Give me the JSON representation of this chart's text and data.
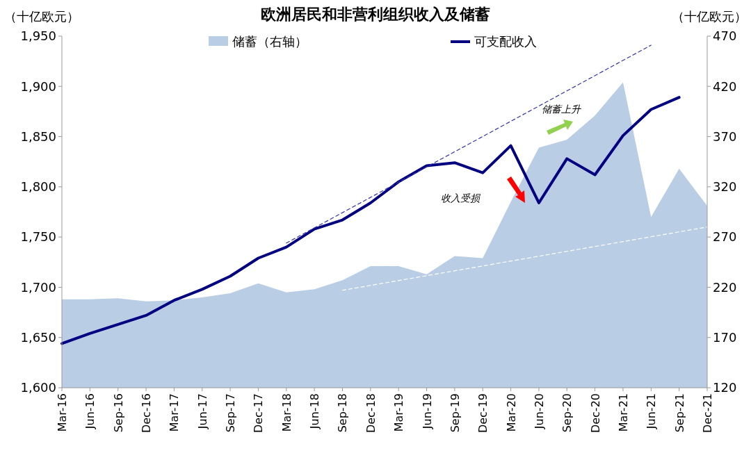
{
  "chart_data": {
    "type": "line",
    "title": "欧洲居民和非营利组织收入及储蓄",
    "ylabel": "（十亿欧元）",
    "y2label": "（十亿欧元）",
    "categories": [
      "Mar-16",
      "Jun-16",
      "Sep-16",
      "Dec-16",
      "Mar-17",
      "Jun-17",
      "Sep-17",
      "Dec-17",
      "Mar-18",
      "Jun-18",
      "Sep-18",
      "Dec-18",
      "Mar-19",
      "Jun-19",
      "Sep-19",
      "Dec-19",
      "Mar-20",
      "Jun-20",
      "Sep-20",
      "Dec-20",
      "Mar-21",
      "Jun-21",
      "Sep-21",
      "Dec-21"
    ],
    "series": [
      {
        "name": "储蓄（右轴）",
        "type": "area",
        "axis": "y2",
        "color": "#b9cde5",
        "values": [
          208,
          208,
          209,
          206,
          207,
          210,
          214,
          224,
          215,
          218,
          227,
          241,
          241,
          233,
          251,
          249,
          305,
          359,
          367,
          391,
          424,
          290,
          338,
          301
        ]
      },
      {
        "name": "可支配收入",
        "color": "#000080",
        "values": [
          1644,
          1654,
          1663,
          1672,
          1687,
          1698,
          1711,
          1729,
          1740,
          1758,
          1767,
          1784,
          1805,
          1821,
          1824,
          1814,
          1841,
          1784,
          1828,
          1812,
          1851,
          1877,
          1889,
          null
        ]
      },
      {
        "color": "#3333aa",
        "line_style": "dashed",
        "x": [
          "Mar-18",
          "Jun-21"
        ],
        "values": [
          1744,
          1941
        ]
      },
      {
        "axis": "y2",
        "color": "#ffffff",
        "line_style": "dashed",
        "x": [
          "Sep-18",
          "Dec-21"
        ],
        "values": [
          217,
          280
        ]
      }
    ],
    "ylim": [
      1600,
      1950
    ],
    "yticks": [
      {
        "value": 1600,
        "label": "1,600"
      },
      {
        "value": 1650,
        "label": "1,650"
      },
      {
        "value": 1700,
        "label": "1,700"
      },
      {
        "value": 1750,
        "label": "1,750"
      },
      {
        "value": 1800,
        "label": "1,800"
      },
      {
        "value": 1850,
        "label": "1,850"
      },
      {
        "value": 1900,
        "label": "1,900"
      },
      {
        "value": 1950,
        "label": "1,950"
      }
    ],
    "y2lim": [
      120,
      470
    ],
    "y2ticks": [
      120,
      170,
      220,
      270,
      320,
      370,
      420,
      470
    ],
    "annotations": [
      "储蓄上升",
      "收入受损"
    ],
    "legend": "top",
    "grid": false
  }
}
